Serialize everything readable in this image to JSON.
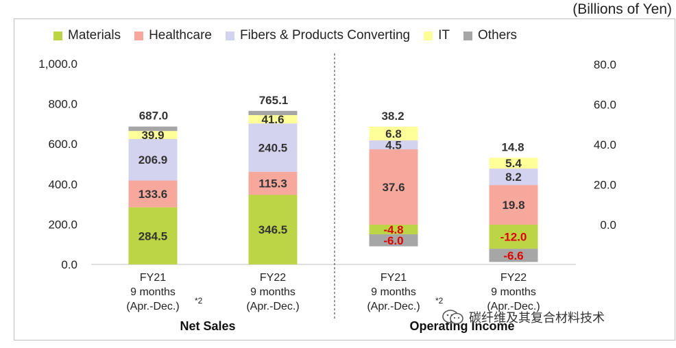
{
  "unit": "(Billions of Yen)",
  "watermark": "碳纤维及其复合材料技术",
  "legend": [
    {
      "name": "Materials",
      "color": "#bcd544"
    },
    {
      "name": "Healthcare",
      "color": "#f6a89c"
    },
    {
      "name": "Fibers & Products Converting",
      "color": "#d3d3f0"
    },
    {
      "name": "IT",
      "color": "#ffff99"
    },
    {
      "name": "Others",
      "color": "#a6a6a6"
    }
  ],
  "chart_data": [
    {
      "type": "bar",
      "stacked": true,
      "title": "Net Sales",
      "axis": "left",
      "ylim": [
        0,
        1000
      ],
      "yticks": [
        "0.0",
        "200.0",
        "400.0",
        "600.0",
        "800.0",
        "1,000.0"
      ],
      "categories": [
        {
          "lines": [
            "FY21",
            "9 months",
            "(Apr.-Dec.)"
          ],
          "note": "*2"
        },
        {
          "lines": [
            "FY22",
            "9 months",
            "(Apr.-Dec.)"
          ],
          "note": ""
        }
      ],
      "series": [
        {
          "name": "Materials",
          "values": [
            284.5,
            346.5
          ],
          "labels": [
            "284.5",
            "346.5"
          ]
        },
        {
          "name": "Healthcare",
          "values": [
            133.6,
            115.3
          ],
          "labels": [
            "133.6",
            "115.3"
          ]
        },
        {
          "name": "Fibers & Products Converting",
          "values": [
            206.9,
            240.5
          ],
          "labels": [
            "206.9",
            "240.5"
          ]
        },
        {
          "name": "IT",
          "values": [
            39.9,
            41.6
          ],
          "labels": [
            "39.9",
            "41.6"
          ]
        },
        {
          "name": "Others",
          "values": [
            22.1,
            21.2
          ],
          "labels": [
            "",
            ""
          ]
        }
      ],
      "totals": [
        "687.0",
        "765.1"
      ]
    },
    {
      "type": "bar",
      "stacked": true,
      "title": "Operating Income",
      "axis": "right",
      "ylim": [
        -20,
        80
      ],
      "yticks": [
        "0.0",
        "20.0",
        "40.0",
        "60.0",
        "80.0"
      ],
      "categories": [
        {
          "lines": [
            "FY21",
            "9 months",
            "(Apr.-Dec.)"
          ],
          "note": "*2"
        },
        {
          "lines": [
            "FY22",
            "9 months",
            "(Apr.-Dec.)"
          ],
          "note": ""
        }
      ],
      "series": [
        {
          "name": "Materials",
          "values": [
            -4.8,
            -12.0
          ],
          "labels": [
            "-4.8",
            "-12.0"
          ]
        },
        {
          "name": "Healthcare",
          "values": [
            37.6,
            19.8
          ],
          "labels": [
            "37.6",
            "19.8"
          ]
        },
        {
          "name": "Fibers & Products Converting",
          "values": [
            4.5,
            8.2
          ],
          "labels": [
            "4.5",
            "8.2"
          ]
        },
        {
          "name": "IT",
          "values": [
            6.8,
            5.4
          ],
          "labels": [
            "6.8",
            "5.4"
          ]
        },
        {
          "name": "Others",
          "values": [
            -6.0,
            -6.6
          ],
          "labels": [
            "-6.0",
            "-6.6"
          ]
        }
      ],
      "totals": [
        "38.2",
        "14.8"
      ]
    }
  ]
}
